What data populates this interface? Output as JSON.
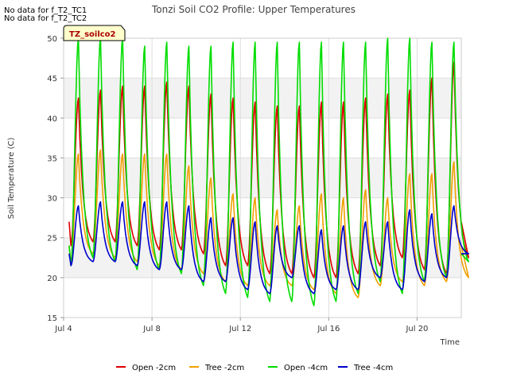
{
  "no_data_messages": [
    "No data for f_T2_TC1",
    "No data for f_T2_TC2"
  ],
  "site_label": "TZ_soilco2",
  "chart_data": {
    "type": "line",
    "title": "Tonzi Soil CO2 Profile: Upper Temperatures",
    "xlabel": "Time",
    "ylabel": "Soil Temperature (C)",
    "xlim": [
      0,
      18
    ],
    "ylim": [
      15,
      50
    ],
    "x_ticks": [
      {
        "x": 0,
        "label": "Jul 4"
      },
      {
        "x": 4,
        "label": "Jul 8"
      },
      {
        "x": 8,
        "label": "Jul 12"
      },
      {
        "x": 12,
        "label": "Jul 16"
      },
      {
        "x": 16,
        "label": "Jul 20"
      }
    ],
    "y_ticks": [
      15,
      20,
      25,
      30,
      35,
      40,
      45,
      50
    ],
    "grid": true,
    "shaded_bands": [
      [
        20,
        25
      ],
      [
        30,
        35
      ],
      [
        40,
        45
      ]
    ],
    "legend_position": "bottom",
    "day_start": 0.25,
    "series": [
      {
        "name": "Open -2cm",
        "color": "#dd0000",
        "min": [
          24.0,
          24.5,
          24.5,
          24.0,
          23.5,
          23.5,
          23.0,
          21.5,
          21.5,
          20.5,
          20.5,
          20.0,
          20.0,
          20.5,
          21.5,
          22.5,
          21.0,
          20.5,
          22.5
        ],
        "max": [
          42.5,
          43.5,
          44.0,
          44.0,
          44.5,
          44.0,
          43.0,
          42.5,
          42.0,
          41.5,
          41.5,
          42.0,
          42.0,
          42.5,
          43.0,
          43.5,
          45.0,
          47.0
        ],
        "start": 27.0,
        "end": 27.0
      },
      {
        "name": "Tree -2cm",
        "color": "#f0a000",
        "min": [
          22.0,
          23.0,
          22.5,
          22.0,
          21.5,
          21.0,
          20.5,
          19.5,
          19.0,
          19.0,
          19.0,
          18.5,
          18.0,
          17.5,
          19.0,
          19.5,
          19.0,
          19.5,
          20.0
        ],
        "max": [
          35.5,
          36.0,
          35.5,
          35.5,
          35.5,
          34.0,
          32.5,
          30.5,
          30.0,
          28.5,
          29.0,
          30.5,
          30.0,
          31.0,
          30.0,
          33.0,
          33.0,
          34.5
        ],
        "start": 24.0,
        "end": 24.0
      },
      {
        "name": "Open -4cm",
        "color": "#00dd00",
        "min": [
          21.5,
          22.5,
          22.0,
          21.0,
          21.0,
          20.5,
          19.0,
          18.0,
          17.5,
          17.0,
          17.0,
          16.5,
          17.0,
          18.0,
          19.5,
          18.0,
          19.5,
          20.0,
          22.0
        ],
        "max": [
          50.0,
          50.0,
          50.0,
          49.0,
          49.5,
          49.0,
          49.0,
          49.5,
          49.5,
          49.5,
          49.5,
          49.5,
          49.5,
          49.5,
          50.0,
          50.0,
          49.5,
          49.5
        ],
        "start": 24.0,
        "end": 23.0
      },
      {
        "name": "Tree -4cm",
        "color": "#0000cc",
        "min": [
          21.5,
          22.0,
          22.0,
          21.5,
          21.0,
          21.0,
          19.5,
          19.5,
          18.5,
          18.0,
          20.0,
          18.0,
          18.5,
          18.5,
          20.0,
          18.5,
          19.5,
          20.0,
          23.0
        ],
        "max": [
          29.0,
          29.5,
          29.5,
          29.5,
          29.5,
          29.0,
          27.5,
          27.5,
          27.0,
          26.5,
          26.5,
          26.0,
          26.5,
          27.0,
          27.0,
          28.5,
          28.0,
          29.0
        ],
        "start": 23.0,
        "end": 23.0
      }
    ]
  }
}
